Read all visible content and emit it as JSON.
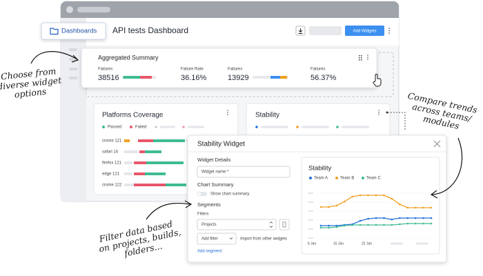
{
  "sidebar": {
    "button": "Dashboards"
  },
  "header": {
    "title": "API tests Dashboard",
    "button": "Add Widgets"
  },
  "summary": {
    "title": "Aggregated Summary",
    "metrics": [
      {
        "label": "Failures",
        "value": "38516"
      },
      {
        "label": "Failure Rate",
        "value": "36.16%"
      },
      {
        "label": "Failures",
        "value": "13929"
      },
      {
        "label": "Failures",
        "value": "56.37%"
      }
    ]
  },
  "platforms": {
    "title": "Platforms Coverage",
    "legend": [
      "Passed",
      "Failed"
    ],
    "rows": [
      "crome 121",
      "safari 14",
      "firefox 121",
      "edge 121",
      "crome 122"
    ]
  },
  "stability_card": {
    "title": "Stability"
  },
  "modal": {
    "title": "Stability Widget",
    "details": "Widget Details",
    "name_placeholder": "Widget name *",
    "summary_heading": "Chart Summary",
    "summary_toggle": "Show chart summary",
    "segments": "Segments",
    "filters": "Filters",
    "project_select": "Projects",
    "add_filter": "Add filter",
    "import": "Import from other widgets",
    "add_segment": "Add segment"
  },
  "chart": {
    "type": "line",
    "title": "Stability",
    "x_labels": [
      "6 Jan",
      "15 Jan",
      "22 Jan"
    ],
    "ylim": [
      0,
      70
    ],
    "series": [
      {
        "name": "Team A",
        "color": "#1f6fd6",
        "values": [
          18,
          18,
          18,
          19,
          20,
          25,
          28,
          29,
          29,
          27,
          29,
          29,
          29,
          29,
          29
        ]
      },
      {
        "name": "Team B",
        "color": "#f0a020",
        "values": [
          45,
          45,
          47,
          53,
          60,
          62,
          62,
          62,
          62,
          57,
          49,
          44,
          44,
          44,
          44
        ]
      },
      {
        "name": "Team C",
        "color": "#3dbb91",
        "values": [
          15,
          15,
          16,
          18,
          19,
          19,
          19,
          19,
          19,
          19,
          20,
          21,
          21,
          21,
          21
        ]
      }
    ]
  },
  "annotations": [
    {
      "lines": [
        "Choose from",
        "diverse widget",
        "options"
      ]
    },
    {
      "lines": [
        "Compare trends",
        "across teams/",
        "modules"
      ]
    },
    {
      "lines": [
        "Filter data based",
        "on projects, builds,",
        "folders..."
      ]
    }
  ]
}
